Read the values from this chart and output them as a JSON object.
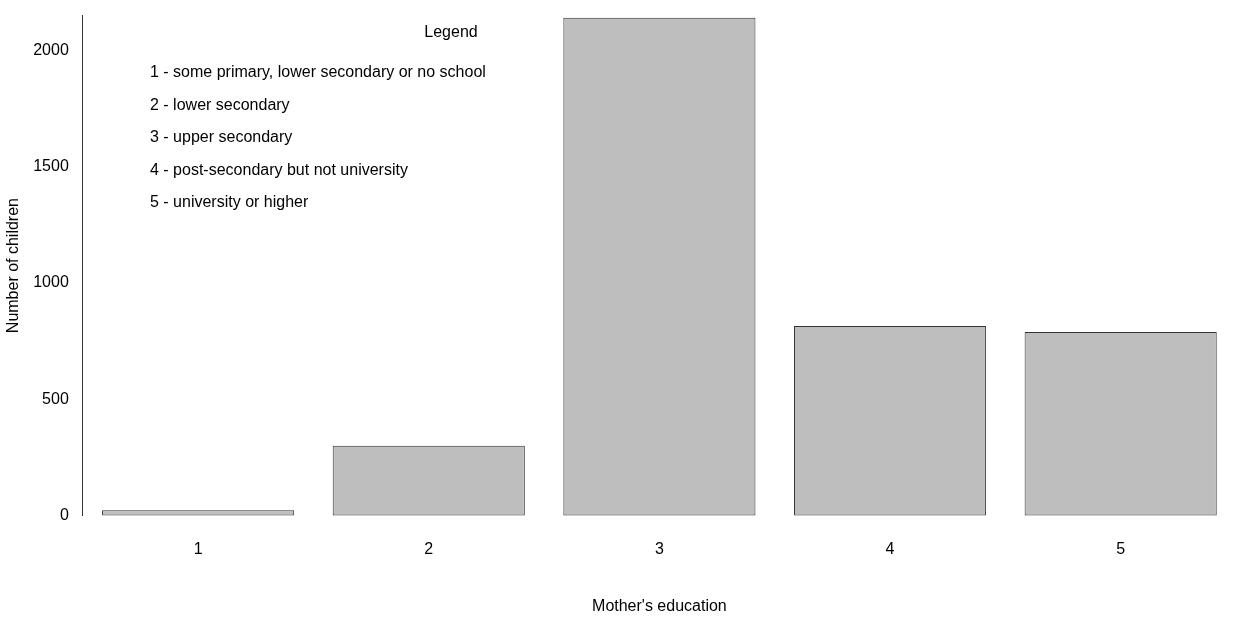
{
  "chart_data": {
    "type": "bar",
    "xlabel": "Mother's education",
    "ylabel": "Number of children",
    "categories": [
      "1",
      "2",
      "3",
      "4",
      "5"
    ],
    "values": [
      23,
      300,
      2141,
      815,
      790
    ],
    "color": "#bebebe",
    "ylim": [
      0,
      2150
    ],
    "yticks": [
      0,
      500,
      1000,
      1500,
      2000
    ],
    "grid": false,
    "legend": false,
    "legend_title": "Legend",
    "annotations": [
      "1 - some primary, lower secondary or no school",
      "2 - lower secondary",
      "3 - upper secondary",
      "4 - post-secondary but not university",
      "5 - university or higher"
    ]
  }
}
